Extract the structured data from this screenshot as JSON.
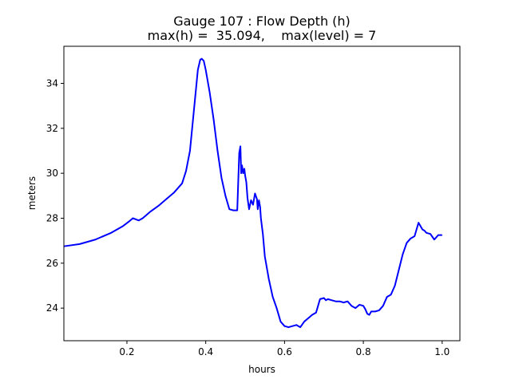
{
  "chart_data": {
    "type": "line",
    "title": "Gauge 107 : Flow Depth (h)",
    "subtitle": "max(h) =  35.094,    max(level) = 7",
    "xlabel": "hours",
    "ylabel": "meters",
    "xlim": [
      0.04,
      1.045
    ],
    "ylim": [
      22.55,
      35.65
    ],
    "xticks": [
      0.2,
      0.4,
      0.6,
      0.8,
      1.0
    ],
    "xtick_labels": [
      "0.2",
      "0.4",
      "0.6",
      "0.8",
      "1.0"
    ],
    "yticks": [
      24,
      26,
      28,
      30,
      32,
      34
    ],
    "ytick_labels": [
      "24",
      "26",
      "28",
      "30",
      "32",
      "34"
    ],
    "grid": false,
    "legend": "none",
    "series": [
      {
        "color": "#0000ff",
        "x": [
          0.04,
          0.08,
          0.12,
          0.16,
          0.19,
          0.205,
          0.215,
          0.23,
          0.24,
          0.26,
          0.28,
          0.3,
          0.32,
          0.34,
          0.35,
          0.36,
          0.37,
          0.38,
          0.386,
          0.39,
          0.395,
          0.4,
          0.41,
          0.42,
          0.43,
          0.44,
          0.45,
          0.46,
          0.47,
          0.48,
          0.485,
          0.488,
          0.49,
          0.492,
          0.495,
          0.498,
          0.5,
          0.503,
          0.506,
          0.51,
          0.515,
          0.52,
          0.525,
          0.53,
          0.532,
          0.535,
          0.538,
          0.54,
          0.545,
          0.55,
          0.56,
          0.57,
          0.58,
          0.59,
          0.6,
          0.61,
          0.62,
          0.63,
          0.64,
          0.65,
          0.66,
          0.67,
          0.68,
          0.69,
          0.7,
          0.705,
          0.71,
          0.72,
          0.73,
          0.74,
          0.75,
          0.76,
          0.77,
          0.78,
          0.79,
          0.8,
          0.805,
          0.81,
          0.815,
          0.82,
          0.83,
          0.84,
          0.85,
          0.86,
          0.87,
          0.88,
          0.89,
          0.9,
          0.91,
          0.92,
          0.93,
          0.94,
          0.95,
          0.955,
          0.96,
          0.97,
          0.98,
          0.99,
          0.995,
          1.0
        ],
        "y": [
          26.75,
          26.85,
          27.05,
          27.35,
          27.65,
          27.85,
          28.0,
          27.9,
          28.0,
          28.3,
          28.55,
          28.85,
          29.15,
          29.55,
          30.1,
          31.0,
          32.8,
          34.6,
          35.05,
          35.094,
          35.0,
          34.6,
          33.6,
          32.4,
          31.0,
          29.8,
          29.0,
          28.4,
          28.35,
          28.35,
          30.9,
          31.2,
          30.0,
          30.35,
          30.0,
          30.2,
          29.9,
          29.6,
          28.9,
          28.4,
          28.8,
          28.6,
          29.1,
          28.85,
          28.4,
          28.8,
          28.5,
          28.0,
          27.3,
          26.3,
          25.3,
          24.5,
          24.0,
          23.4,
          23.2,
          23.15,
          23.2,
          23.25,
          23.15,
          23.4,
          23.55,
          23.7,
          23.8,
          24.4,
          24.45,
          24.35,
          24.4,
          24.35,
          24.3,
          24.3,
          24.25,
          24.3,
          24.1,
          24.0,
          24.15,
          24.1,
          23.95,
          23.75,
          23.7,
          23.85,
          23.85,
          23.9,
          24.1,
          24.5,
          24.6,
          25.0,
          25.7,
          26.4,
          26.9,
          27.1,
          27.2,
          27.8,
          27.5,
          27.45,
          27.35,
          27.3,
          27.05,
          27.25,
          27.25,
          27.25
        ]
      }
    ]
  }
}
